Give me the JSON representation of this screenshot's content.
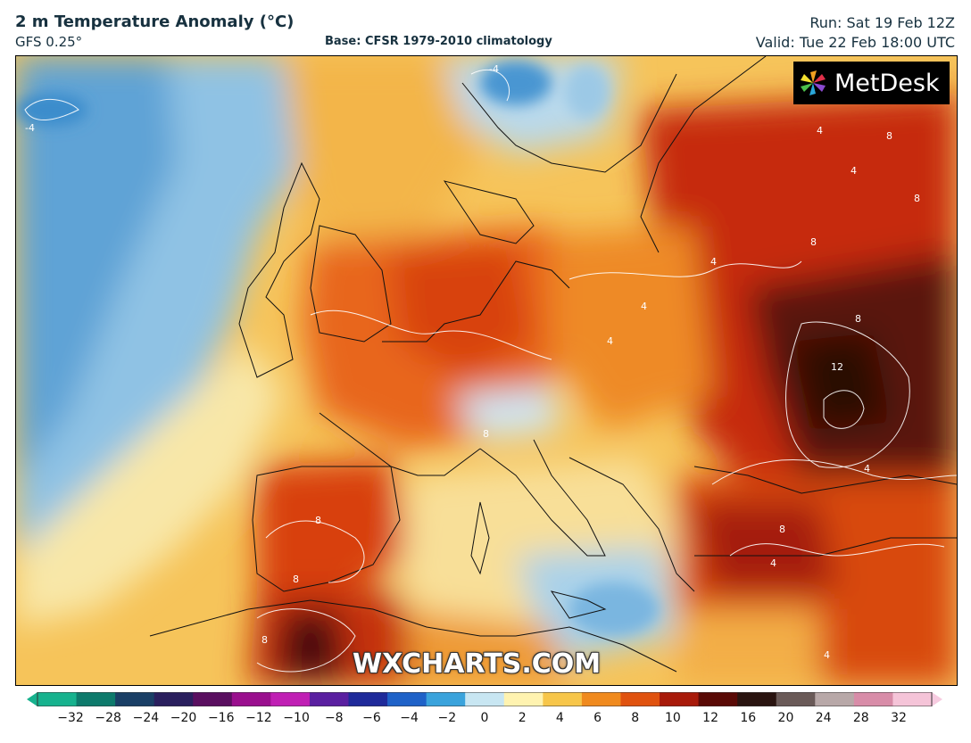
{
  "header": {
    "title": "2 m Temperature Anomaly (°C)",
    "model": "GFS 0.25°",
    "base": "Base: CFSR 1979-2010 climatology",
    "run": "Run: Sat 19 Feb 12Z",
    "valid": "Valid: Tue 22 Feb 18:00 UTC"
  },
  "logo": {
    "text": "MetDesk",
    "icon": "metdesk-pinwheel-icon"
  },
  "watermark": "WXCHARTS.COM",
  "map_labels": {
    "contour_minus4": "-4",
    "contour_4": "4",
    "contour_8": "8",
    "contour_12": "12"
  },
  "colorbar": {
    "ticks": [
      "−32",
      "−28",
      "−24",
      "−20",
      "−16",
      "−12",
      "−10",
      "−8",
      "−6",
      "−4",
      "−2",
      "0",
      "2",
      "4",
      "6",
      "8",
      "10",
      "12",
      "16",
      "20",
      "24",
      "28",
      "32"
    ],
    "colors": [
      "#17b28e",
      "#0e7a6c",
      "#1a3f66",
      "#2a1f5e",
      "#5a0f60",
      "#9a0f8e",
      "#c01fb4",
      "#5a1fa0",
      "#1f2a9a",
      "#1f62c8",
      "#3aa3dc",
      "#c8e6f2",
      "#fff3b0",
      "#f7c64a",
      "#f08a1e",
      "#e0520f",
      "#a81a0a",
      "#5a0a06",
      "#2a1410",
      "#6a5a58",
      "#b8a8a8",
      "#d88ca8",
      "#f5c4d8"
    ],
    "end_left": "#17b28e",
    "end_right": "#f7cbe0"
  },
  "palette": {
    "ocean_cold": "#6faedb",
    "ocean_cool": "#cde6f2",
    "neutral": "#fdf1c2",
    "warm": "#f3a43a",
    "hot": "#e45a10",
    "very_hot": "#c02608",
    "extreme": "#4a0e08"
  }
}
